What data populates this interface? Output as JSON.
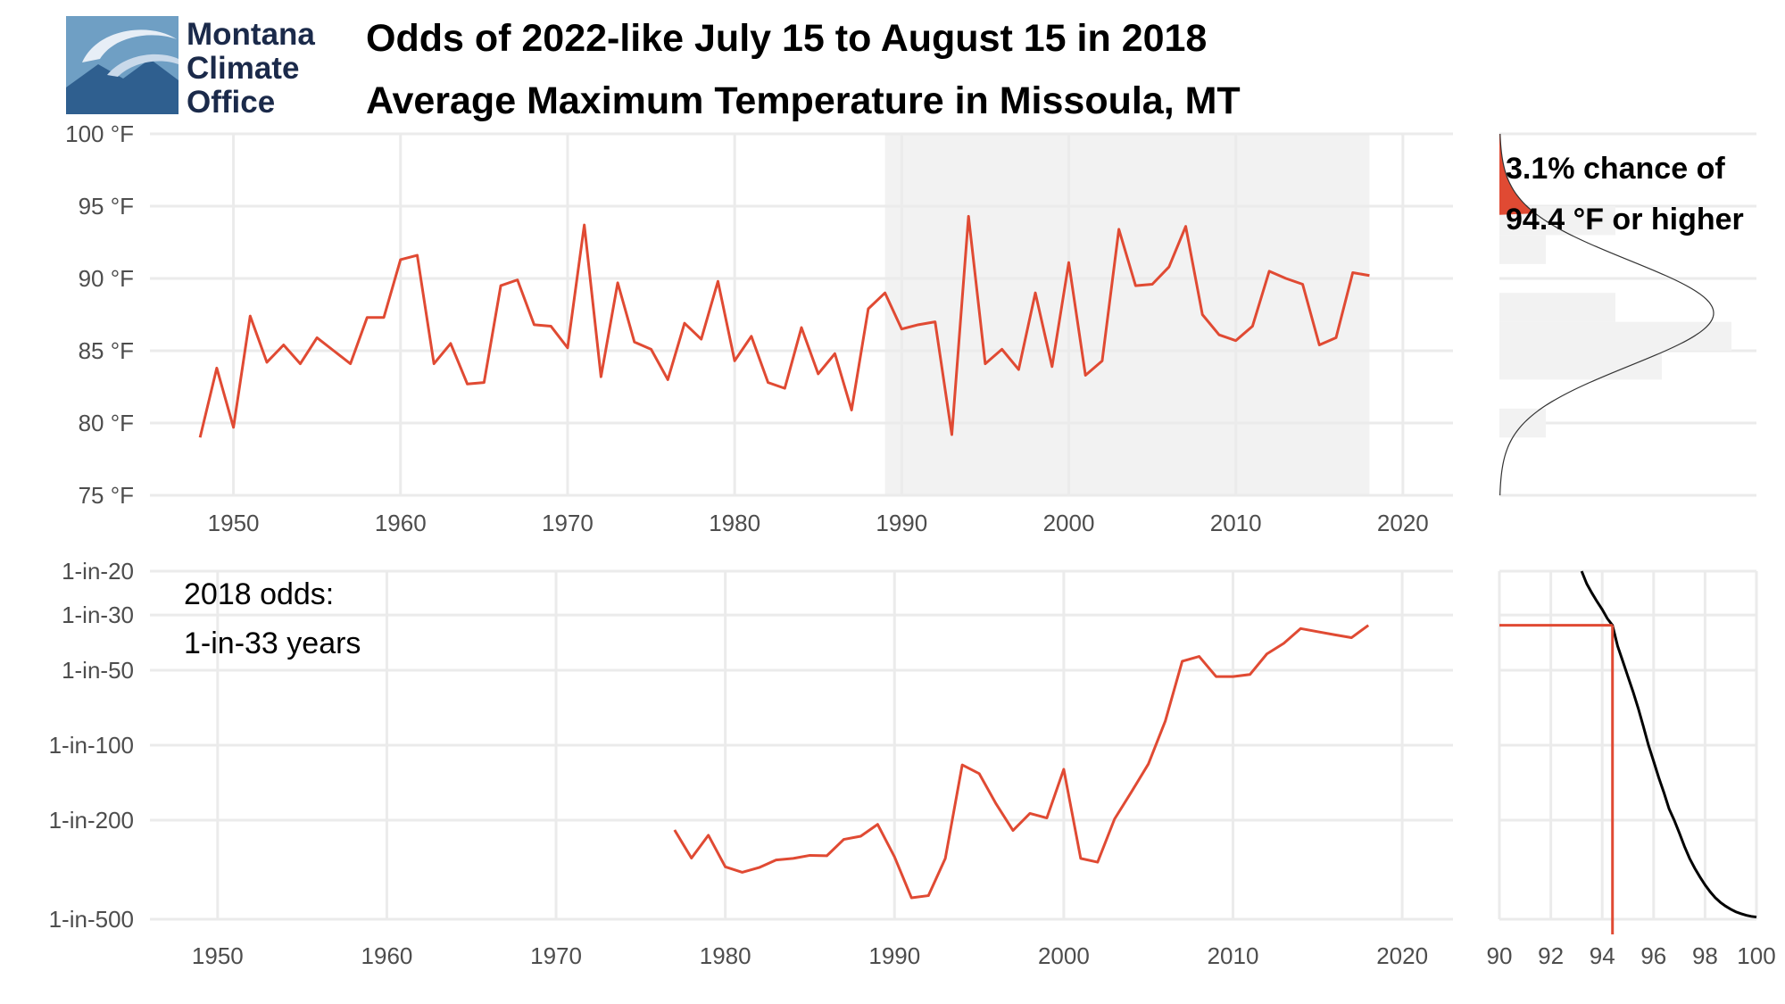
{
  "logo": {
    "lines": [
      "Montana",
      "Climate",
      "Office"
    ]
  },
  "colors": {
    "series": "#e04a33",
    "band": "#f2f2f2",
    "grid": "#ebebeb",
    "curve": "#000000"
  },
  "chart_data": [
    {
      "id": "temperature-series",
      "type": "line",
      "title": [
        "Odds of 2022-like July 15 to August 15 in 2018",
        "Average Maximum Temperature in Missoula, MT"
      ],
      "xlim": [
        1945,
        2023
      ],
      "ylim": [
        75,
        100
      ],
      "x_ticks": [
        1950,
        1960,
        1970,
        1980,
        1990,
        2000,
        2010,
        2020
      ],
      "y_ticks": [
        75,
        80,
        85,
        90,
        95,
        100
      ],
      "y_tick_labels": [
        "75 °F",
        "80 °F",
        "85 °F",
        "90 °F",
        "95 °F",
        "100 °F"
      ],
      "reference_period": [
        1989,
        2018
      ],
      "x": [
        1948,
        1949,
        1950,
        1951,
        1952,
        1953,
        1954,
        1955,
        1956,
        1957,
        1958,
        1959,
        1960,
        1961,
        1962,
        1963,
        1964,
        1965,
        1966,
        1967,
        1968,
        1969,
        1970,
        1971,
        1972,
        1973,
        1974,
        1975,
        1976,
        1977,
        1978,
        1979,
        1980,
        1981,
        1982,
        1983,
        1984,
        1985,
        1986,
        1987,
        1988,
        1989,
        1990,
        1991,
        1992,
        1993,
        1994,
        1995,
        1996,
        1997,
        1998,
        1999,
        2000,
        2001,
        2002,
        2003,
        2004,
        2005,
        2006,
        2007,
        2008,
        2009,
        2010,
        2011,
        2012,
        2013,
        2014,
        2015,
        2016,
        2017,
        2018
      ],
      "y": [
        79.0,
        83.8,
        79.7,
        87.4,
        84.2,
        85.4,
        84.1,
        85.9,
        85.0,
        84.1,
        87.3,
        87.3,
        91.3,
        91.6,
        84.1,
        85.5,
        82.7,
        82.8,
        89.5,
        89.9,
        86.8,
        86.7,
        85.2,
        93.7,
        83.2,
        89.7,
        85.6,
        85.1,
        83.0,
        86.9,
        85.8,
        89.8,
        84.3,
        86.0,
        82.8,
        82.4,
        86.6,
        83.4,
        84.8,
        80.9,
        87.9,
        89.0,
        86.5,
        86.8,
        87.0,
        79.2,
        94.3,
        84.1,
        85.1,
        83.7,
        89.0,
        83.9,
        91.1,
        83.3,
        84.3,
        93.4,
        89.5,
        89.6,
        90.8,
        93.6,
        87.5,
        86.1,
        85.7,
        86.7,
        90.5,
        90.0,
        89.6,
        85.4,
        85.9,
        90.4,
        90.2
      ]
    },
    {
      "id": "distribution",
      "type": "histogram",
      "ylim": [
        75,
        100
      ],
      "bin_edges": [
        79,
        81,
        83,
        85,
        87,
        89,
        91,
        93,
        95
      ],
      "counts": [
        2,
        0,
        7,
        10,
        5,
        0,
        2,
        5
      ],
      "density": {
        "mean": 87.6,
        "sd": 3.65
      },
      "threshold": 94.4,
      "annotation": [
        "3.1% chance of",
        "94.4 °F or higher"
      ]
    },
    {
      "id": "odds-series",
      "type": "line",
      "xlim": [
        1946,
        2023
      ],
      "x_ticks": [
        1950,
        1960,
        1970,
        1980,
        1990,
        2000,
        2010,
        2020
      ],
      "y_ticks": [
        20,
        30,
        50,
        100,
        200,
        500
      ],
      "y_tick_labels": [
        "1-in-20",
        "1-in-30",
        "1-in-50",
        "1-in-100",
        "1-in-200",
        "1-in-500"
      ],
      "annotation": [
        "2018 odds:",
        "1-in-33 years"
      ],
      "x": [
        1977,
        1978,
        1979,
        1980,
        1981,
        1982,
        1983,
        1984,
        1985,
        1986,
        1987,
        1988,
        1989,
        1990,
        1991,
        1992,
        1993,
        1994,
        1995,
        1996,
        1997,
        1998,
        1999,
        2000,
        2001,
        2002,
        2003,
        2004,
        2005,
        2006,
        2007,
        2008,
        2009,
        2010,
        2011,
        2012,
        2013,
        2014,
        2015,
        2016,
        2017,
        2018
      ],
      "y": [
        219,
        284,
        230,
        308,
        324,
        310,
        289,
        285,
        277,
        278,
        239,
        232,
        208,
        281,
        410,
        402,
        285,
        120,
        130,
        172,
        220,
        188,
        196,
        125,
        285,
        295,
        198,
        154,
        119,
        80,
        46,
        44,
        53,
        53,
        52,
        43,
        39,
        34,
        35,
        36,
        37,
        33
      ]
    },
    {
      "id": "exceedance-curve",
      "type": "line",
      "xlim": [
        90,
        100
      ],
      "x_ticks": [
        90,
        92,
        94,
        96,
        98,
        100
      ],
      "threshold": 94.4,
      "curve_x": [
        93.2,
        93.4,
        93.6,
        93.8,
        94.0,
        94.2,
        94.4,
        94.6,
        94.8,
        95.0,
        95.2,
        95.4,
        95.6,
        95.8,
        96.0,
        96.2,
        96.4,
        96.6,
        96.8,
        97.0,
        97.2,
        97.4,
        97.6,
        97.8,
        98.0,
        98.2,
        98.4,
        98.6,
        98.8,
        99.0,
        99.2,
        99.4,
        99.6,
        99.8,
        100.0
      ],
      "curve_y": [
        20,
        22.5,
        24.5,
        26.5,
        28.5,
        31,
        33,
        40,
        46,
        53,
        61,
        71,
        84,
        100,
        116,
        135,
        155,
        180,
        200,
        225,
        255,
        285,
        312,
        338,
        364,
        388,
        410,
        428,
        443,
        456,
        467,
        475,
        482,
        487,
        490
      ]
    }
  ]
}
